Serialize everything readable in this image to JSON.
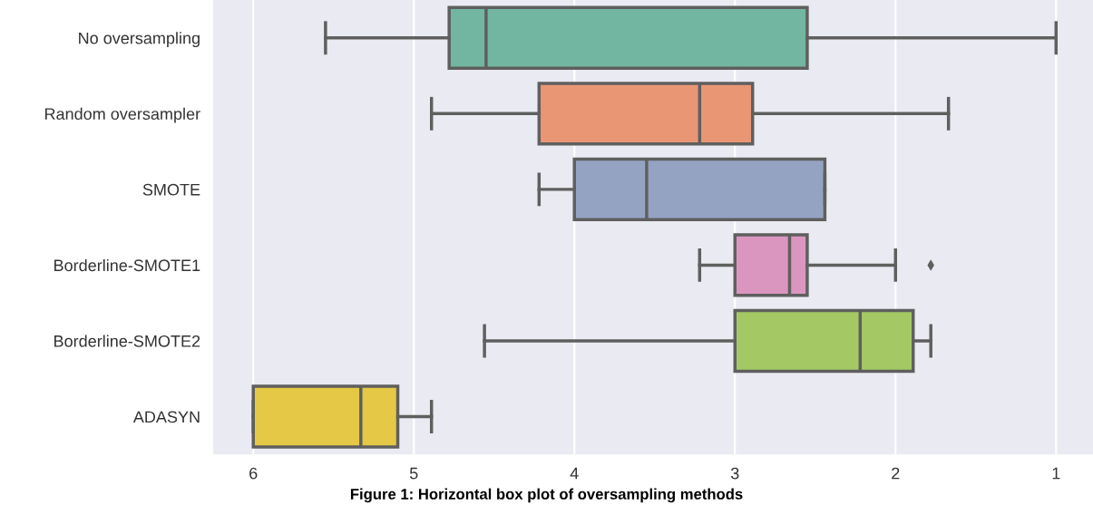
{
  "chart_data": {
    "type": "box",
    "orientation": "horizontal",
    "categories": [
      "No oversampling",
      "Random oversampler",
      "SMOTE",
      "Borderline-SMOTE1",
      "Borderline-SMOTE2",
      "ADASYN"
    ],
    "boxes": [
      {
        "low": 1.0,
        "q1": 2.55,
        "median": 4.55,
        "q3": 4.78,
        "high": 5.55
      },
      {
        "low": 1.67,
        "q1": 2.89,
        "median": 3.22,
        "q3": 4.22,
        "high": 4.89
      },
      {
        "low": 2.44,
        "q1": 2.44,
        "median": 3.55,
        "q3": 4.0,
        "high": 4.22
      },
      {
        "low": 2.0,
        "q1": 2.55,
        "median": 2.66,
        "q3": 3.0,
        "high": 3.22,
        "outliers": [
          1.78
        ]
      },
      {
        "low": 1.78,
        "q1": 1.89,
        "median": 2.22,
        "q3": 3.0,
        "high": 4.56
      },
      {
        "low": 4.89,
        "q1": 5.1,
        "median": 5.33,
        "q3": 6.0,
        "high": 6.0
      }
    ],
    "colors": [
      "#72b6a1",
      "#e99675",
      "#95a3c3",
      "#db96c0",
      "#a4c964",
      "#e5c846"
    ],
    "xlim": [
      6.25,
      0.77
    ],
    "xticks": [
      6,
      5,
      4,
      3,
      2,
      1
    ],
    "grid": "x",
    "marker": "diamond",
    "annotations": [
      "Figure 1: Horizontal box plot of oversampling methods"
    ]
  }
}
